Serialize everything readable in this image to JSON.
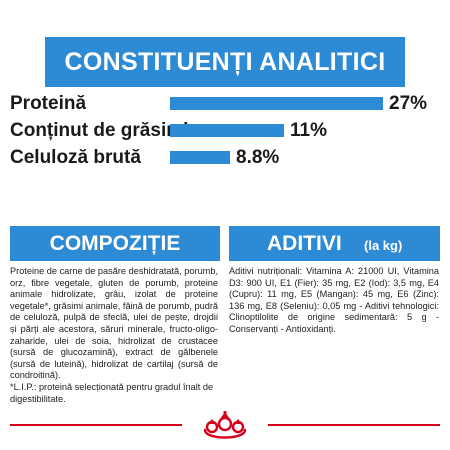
{
  "analytics": {
    "title": "CONSTITUENȚI ANALITICI",
    "rows": [
      {
        "label": "Proteină",
        "value": "27%"
      },
      {
        "label": "Conținut de grăsimi",
        "value": "11%"
      },
      {
        "label": "Celuloză brută",
        "value": "8.8%"
      }
    ]
  },
  "composition": {
    "title": "COMPOZIȚIE",
    "text": "Proteine de carne de pasăre deshidratată, porumb, orz, fibre vegetale, gluten de porumb, proteine animale hidrolizate, grâu, izolat de proteine vegetale*, grăsimi animale, făină de porumb, pudră de celuloză, pulpă de sfeclă, ulei de pește, drojdii și părți ale acestora, săruri minerale, fructo-oligo-zaharide, ulei de soia, hidrolizat de crustacee (sursă de glucozamină), extract de gălbenele (sursă de luteină), hidrolizat de cartilaj (sursă de condroitină).",
    "footnote": "*L.I.P.: proteină selecționată pentru gradul înalt de digestibilitate."
  },
  "additives": {
    "title": "ADITIVI",
    "unit": "(la kg)",
    "text": "Aditivi nutriționali: Vitamina A: 21000 UI, Vitamina D3: 900 UI, E1 (Fier): 35 mg, E2 (Iod): 3,5 mg, E4 (Cupru): 11 mg, E5 (Mangan): 45 mg, E6 (Zinc): 136 mg, E8 (Seleniu): 0,05 mg - Aditivi tehnologici: Clinoptilolite de origine sedimentară: 5 g - Conservanți - Antioxidanți."
  },
  "colors": {
    "accent": "#2d8bd6",
    "brand_red": "#d6001c"
  },
  "logo": {
    "icon": "royal-canin-crown-icon"
  }
}
